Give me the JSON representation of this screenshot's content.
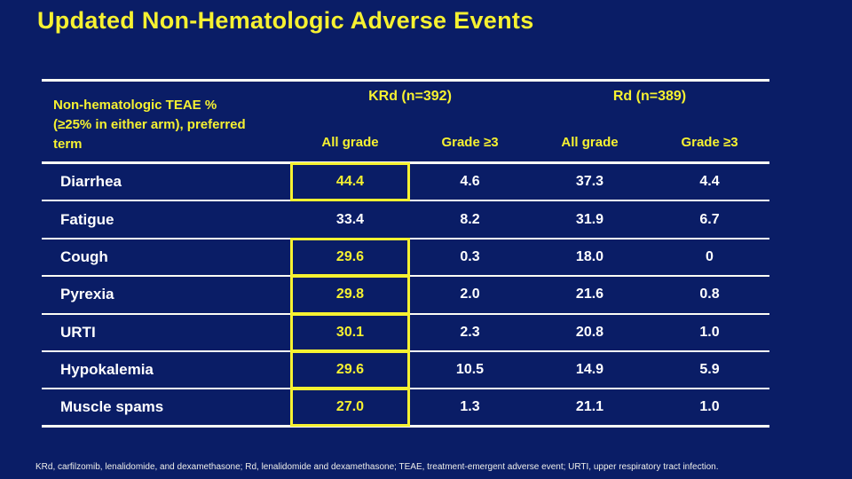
{
  "slide": {
    "title": "Updated Non-Hematologic Adverse Events",
    "footnote": "KRd, carfilzomib, lenalidomide, and dexamethasone; Rd, lenalidomide and dexamethasone; TEAE, treatment-emergent adverse event; URTI, upper respiratory tract infection.",
    "colors": {
      "background": "#0A1D66",
      "accent_yellow": "#F6F131",
      "text_white": "#FFFFFF",
      "rule_white": "#FDFDF5"
    }
  },
  "table": {
    "type": "table",
    "row_header_lines": [
      "Non-hematologic TEAE %",
      "(≥25% in either arm), preferred",
      "term"
    ],
    "groups": [
      {
        "label": "KRd (n=392)"
      },
      {
        "label": "Rd (n=389)"
      }
    ],
    "sub_headers": [
      "All grade",
      "Grade ≥3",
      "All grade",
      "Grade ≥3"
    ],
    "rows": [
      {
        "label": "Diarrhea",
        "values": [
          "44.4",
          "4.6",
          "37.3",
          "4.4"
        ],
        "highlight_first": true
      },
      {
        "label": "Fatigue",
        "values": [
          "33.4",
          "8.2",
          "31.9",
          "6.7"
        ],
        "highlight_first": false
      },
      {
        "label": "Cough",
        "values": [
          "29.6",
          "0.3",
          "18.0",
          "0"
        ],
        "highlight_first": true
      },
      {
        "label": "Pyrexia",
        "values": [
          "29.8",
          "2.0",
          "21.6",
          "0.8"
        ],
        "highlight_first": true
      },
      {
        "label": "URTI",
        "values": [
          "30.1",
          "2.3",
          "20.8",
          "1.0"
        ],
        "highlight_first": true
      },
      {
        "label": "Hypokalemia",
        "values": [
          "29.6",
          "10.5",
          "14.9",
          "5.9"
        ],
        "highlight_first": true
      },
      {
        "label": "Muscle spams",
        "values": [
          "27.0",
          "1.3",
          "21.1",
          "1.0"
        ],
        "highlight_first": true
      }
    ]
  }
}
